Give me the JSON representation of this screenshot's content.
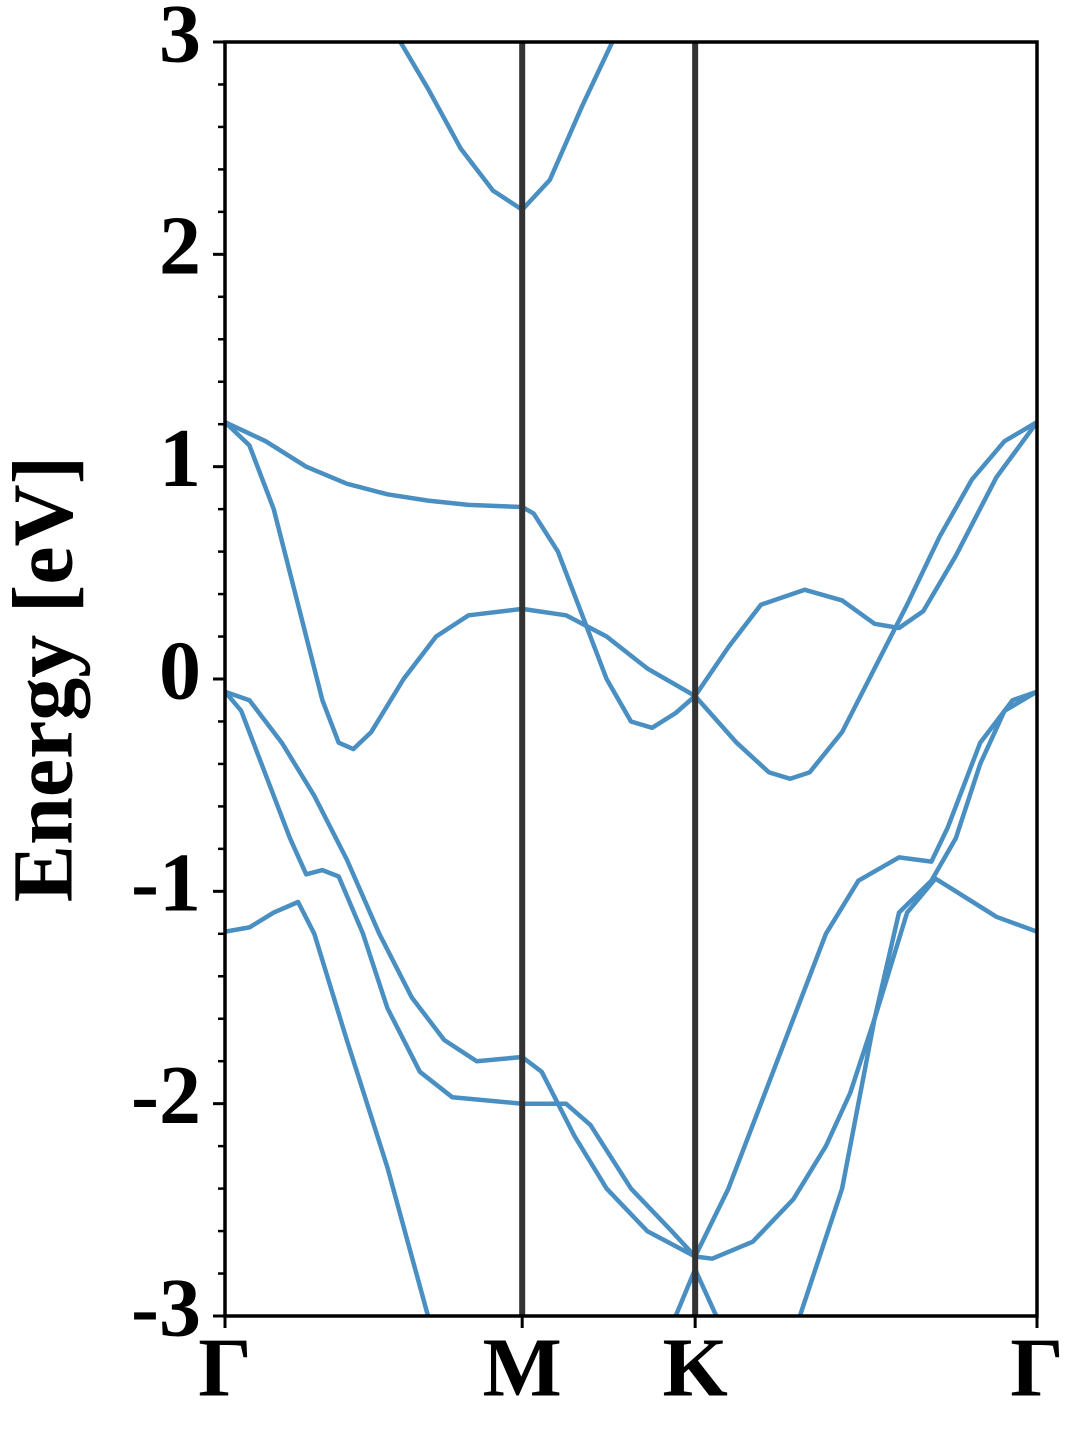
{
  "chart_data": {
    "type": "line",
    "ylabel": "Energy [eV]",
    "color": "#4a8fc2",
    "xlim": [
      0,
      1
    ],
    "ylim": [
      -3,
      3
    ],
    "xticks": [
      {
        "value": 0,
        "label": "Γ"
      },
      {
        "value": 0.366,
        "label": "M"
      },
      {
        "value": 0.579,
        "label": "K"
      },
      {
        "value": 1,
        "label": "Γ"
      }
    ],
    "yticks": [
      -3,
      -2,
      -1,
      0,
      1,
      2,
      3
    ],
    "yminorticks": [
      -2.8,
      -2.6,
      -2.4,
      -2.2,
      -1.8,
      -1.6,
      -1.4,
      -1.2,
      -0.8,
      -0.6,
      -0.4,
      -0.2,
      0.2,
      0.4,
      0.6,
      0.8,
      1.2,
      1.4,
      1.6,
      1.8,
      2.2,
      2.4,
      2.6,
      2.8
    ],
    "series": [
      {
        "x": [
          0.216,
          0.25,
          0.29,
          0.33,
          0.366,
          0.4,
          0.44,
          0.477
        ],
        "values": [
          3.0,
          2.78,
          2.5,
          2.3,
          2.21,
          2.35,
          2.7,
          3.0
        ]
      },
      {
        "x": [
          0,
          0.05,
          0.1,
          0.15,
          0.2,
          0.25,
          0.3,
          0.366,
          0.38,
          0.41,
          0.44,
          0.47,
          0.5,
          0.526,
          0.555,
          0.579,
          0.62,
          0.66,
          0.714,
          0.76,
          0.8,
          0.83,
          0.86,
          0.9,
          0.95,
          1.0
        ],
        "values": [
          1.21,
          1.12,
          1.0,
          0.92,
          0.87,
          0.84,
          0.82,
          0.81,
          0.78,
          0.6,
          0.3,
          0.0,
          -0.2,
          -0.23,
          -0.16,
          -0.08,
          0.15,
          0.35,
          0.42,
          0.37,
          0.26,
          0.24,
          0.32,
          0.58,
          0.95,
          1.21
        ]
      },
      {
        "x": [
          0,
          0.03,
          0.06,
          0.09,
          0.12,
          0.14,
          0.158,
          0.18,
          0.22,
          0.26,
          0.3,
          0.366,
          0.42,
          0.47,
          0.52,
          0.579,
          0.63,
          0.67,
          0.696,
          0.72,
          0.76,
          0.8,
          0.84,
          0.88,
          0.92,
          0.96,
          1.0
        ],
        "values": [
          1.21,
          1.1,
          0.8,
          0.35,
          -0.1,
          -0.3,
          -0.33,
          -0.25,
          0.0,
          0.2,
          0.3,
          0.33,
          0.3,
          0.2,
          0.05,
          -0.08,
          -0.3,
          -0.44,
          -0.47,
          -0.44,
          -0.25,
          0.05,
          0.35,
          0.67,
          0.94,
          1.12,
          1.21
        ]
      },
      {
        "x": [
          0,
          0.03,
          0.07,
          0.11,
          0.15,
          0.19,
          0.23,
          0.27,
          0.31,
          0.366,
          0.39,
          0.43,
          0.47,
          0.52,
          0.579,
          0.6,
          0.65,
          0.7,
          0.74,
          0.77,
          0.8,
          0.83,
          0.87,
          0.9,
          0.93,
          0.96,
          1.0
        ],
        "values": [
          -0.06,
          -0.1,
          -0.3,
          -0.55,
          -0.85,
          -1.2,
          -1.5,
          -1.7,
          -1.8,
          -1.78,
          -1.85,
          -2.15,
          -2.4,
          -2.6,
          -2.72,
          -2.73,
          -2.65,
          -2.45,
          -2.2,
          -1.95,
          -1.6,
          -1.1,
          -0.95,
          -0.75,
          -0.4,
          -0.15,
          -0.06
        ]
      },
      {
        "x": [
          0,
          0.02,
          0.05,
          0.08,
          0.1,
          0.12,
          0.14,
          0.17,
          0.2,
          0.24,
          0.28,
          0.366,
          0.42,
          0.45,
          0.5,
          0.55,
          0.579,
          0.62,
          0.66,
          0.7,
          0.74,
          0.78,
          0.83,
          0.87,
          0.89,
          0.93,
          0.97,
          1.0
        ],
        "values": [
          -0.06,
          -0.15,
          -0.45,
          -0.75,
          -0.92,
          -0.9,
          -0.93,
          -1.2,
          -1.55,
          -1.85,
          -1.97,
          -2.0,
          -2.0,
          -2.1,
          -2.4,
          -2.6,
          -2.72,
          -2.4,
          -2.0,
          -1.6,
          -1.2,
          -0.95,
          -0.84,
          -0.86,
          -0.7,
          -0.3,
          -0.1,
          -0.06
        ]
      },
      {
        "x": [
          0,
          0.03,
          0.06,
          0.09,
          0.11,
          0.15,
          0.2,
          0.25
        ],
        "values": [
          -1.19,
          -1.17,
          -1.1,
          -1.05,
          -1.2,
          -1.7,
          -2.3,
          -3.0
        ]
      },
      {
        "x": [
          0.555,
          0.579,
          0.605
        ],
        "values": [
          -3.0,
          -2.78,
          -3.0
        ]
      },
      {
        "x": [
          0.708,
          0.76,
          0.8,
          0.84,
          0.875,
          0.9,
          0.95,
          1.0
        ],
        "values": [
          -3.0,
          -2.4,
          -1.6,
          -1.1,
          -0.94,
          -1.0,
          -1.12,
          -1.19
        ]
      }
    ]
  }
}
